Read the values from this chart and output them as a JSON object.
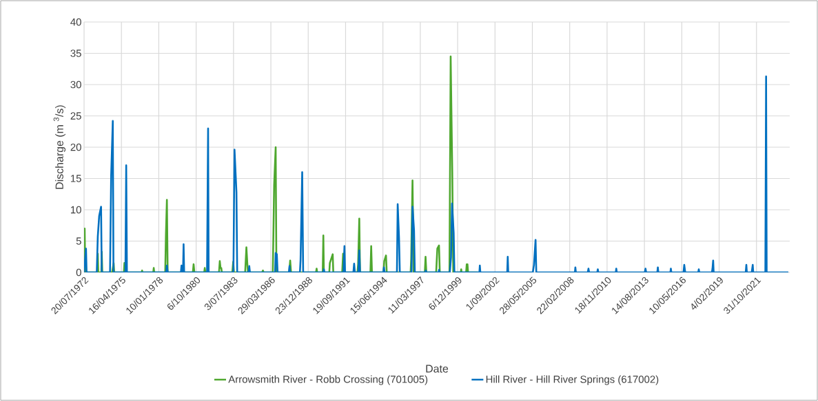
{
  "chart_data": {
    "type": "line",
    "xlabel": "Date",
    "ylabel": "Discharge (m $^{3}$/s)",
    "grid": true,
    "legend": "bottom",
    "line_style": "solid",
    "xlim": [
      "1972-07-20",
      "2024-04-08"
    ],
    "xticks": [
      {
        "value": "1972-07-20",
        "label": "20/07/1972"
      },
      {
        "value": "1975-04-16",
        "label": "16/04/1975"
      },
      {
        "value": "1978-01-10",
        "label": "10/01/1978"
      },
      {
        "value": "1980-10-06",
        "label": "6/10/1980"
      },
      {
        "value": "1983-07-03",
        "label": "3/07/1983"
      },
      {
        "value": "1986-03-29",
        "label": "29/03/1986"
      },
      {
        "value": "1988-12-23",
        "label": "23/12/1988"
      },
      {
        "value": "1991-09-19",
        "label": "19/09/1991"
      },
      {
        "value": "1994-06-15",
        "label": "15/06/1994"
      },
      {
        "value": "1997-03-11",
        "label": "11/03/1997"
      },
      {
        "value": "1999-12-06",
        "label": "6/12/1999"
      },
      {
        "value": "2002-09-01",
        "label": "1/09/2002"
      },
      {
        "value": "2005-05-28",
        "label": "28/05/2005"
      },
      {
        "value": "2008-02-22",
        "label": "22/02/2008"
      },
      {
        "value": "2010-11-18",
        "label": "18/11/2010"
      },
      {
        "value": "2013-08-14",
        "label": "14/08/2013"
      },
      {
        "value": "2016-05-10",
        "label": "10/05/2016"
      },
      {
        "value": "2019-02-04",
        "label": "4/02/2019"
      },
      {
        "value": "2021-10-31",
        "label": "31/10/2021"
      }
    ],
    "ylim": [
      0,
      40
    ],
    "yticks": [
      0,
      5,
      10,
      15,
      20,
      25,
      30,
      35,
      40
    ],
    "series": [
      {
        "name": "Arrowsmith River - Robb Crossing (701005)",
        "color": "#4ea72e",
        "x": [
          "1972-07-20",
          "1972-07-25",
          "1972-08-05",
          "1972-08-20",
          "1973-07-10",
          "1973-07-22",
          "1973-08-05",
          "1973-10-25",
          "1973-11-05",
          "1973-11-20",
          "1974-08-10",
          "1974-08-28",
          "1974-09-20",
          "1974-10-05",
          "1975-06-20",
          "1975-07-05",
          "1975-08-10",
          "1975-08-25",
          "1976-10-10",
          "1976-10-20",
          "1976-10-30",
          "1977-08-15",
          "1977-08-28",
          "1977-09-10",
          "1978-07-01",
          "1978-07-20",
          "1978-08-15",
          "1978-09-05",
          "1980-07-10",
          "1980-07-30",
          "1980-08-20",
          "1981-05-10",
          "1981-05-25",
          "1981-06-10",
          "1982-06-10",
          "1982-07-01",
          "1982-07-20",
          "1982-08-10",
          "1982-08-25",
          "1983-06-01",
          "1983-06-25",
          "1983-07-15",
          "1984-05-10",
          "1984-06-12",
          "1984-07-10",
          "1984-07-25",
          "1985-08-10",
          "1985-08-28",
          "1985-09-15",
          "1986-05-20",
          "1986-06-25",
          "1986-08-05",
          "1986-08-25",
          "1987-08-01",
          "1987-08-28",
          "1987-09-20",
          "1989-07-20",
          "1989-08-05",
          "1989-08-20",
          "1990-01-15",
          "1990-02-01",
          "1990-02-15",
          "1990-07-10",
          "1990-07-25",
          "1990-10-10",
          "1990-10-25",
          "1991-06-20",
          "1991-07-15",
          "1991-08-01",
          "1992-08-01",
          "1992-08-20",
          "1992-09-20",
          "1992-10-10",
          "1993-07-15",
          "1993-08-05",
          "1993-08-25",
          "1994-07-01",
          "1994-07-20",
          "1994-09-05",
          "1994-09-25",
          "1995-06-10",
          "1995-06-25",
          "1995-07-10",
          "1996-06-25",
          "1996-07-10",
          "1996-08-15",
          "1996-09-15",
          "1997-07-10",
          "1997-07-30",
          "1997-08-20",
          "1998-05-10",
          "1998-06-10",
          "1998-07-25",
          "1998-08-15",
          "1999-05-01",
          "1999-06-02",
          "1999-07-15",
          "1999-08-10",
          "2000-03-01",
          "2000-03-10",
          "2000-03-20",
          "2000-07-20",
          "2000-08-05",
          "2000-08-25",
          "2000-09-10",
          "2001-06-01"
        ],
        "values": [
          0,
          4.4,
          7.0,
          0,
          0,
          3.0,
          0,
          0,
          3.3,
          0,
          0,
          null,
          1.5,
          0,
          0,
          1.5,
          null,
          0,
          0,
          0.3,
          0,
          0,
          0.7,
          0,
          0,
          6.0,
          11.6,
          0,
          0,
          1.3,
          0,
          0,
          0.7,
          0,
          0,
          1.8,
          0.7,
          0.7,
          0,
          0,
          1.7,
          0,
          0,
          4.0,
          1.1,
          0,
          0,
          0.3,
          0,
          0,
          14.0,
          20.0,
          0,
          0,
          1.9,
          0,
          0,
          0.6,
          0,
          0,
          5.9,
          0,
          0,
          1.5,
          2.9,
          0,
          0,
          3.0,
          0,
          0,
          1.3,
          8.6,
          0,
          0,
          4.2,
          0,
          0,
          1.8,
          2.7,
          0,
          0,
          null,
          0,
          0,
          2.1,
          14.7,
          0,
          0,
          2.5,
          0,
          0,
          3.8,
          4.3,
          0,
          0,
          34.5,
          16.0,
          0,
          0,
          0.5,
          0,
          0,
          1.3,
          1.3,
          0,
          0
        ]
      },
      {
        "name": "Hill River - Hill River Springs (617002)",
        "color": "#0070c0",
        "x": [
          "1972-07-20",
          "1972-09-10",
          "1972-09-25",
          "1973-06-25",
          "1973-07-22",
          "1973-08-28",
          "1973-10-18",
          "1973-11-05",
          "1974-06-15",
          "1974-07-15",
          "1974-08-28",
          "1974-09-15",
          "1975-08-01",
          "1975-08-22",
          "1975-09-10",
          "1978-07-25",
          "1978-08-15",
          "1978-09-05",
          "1979-08-25",
          "1979-09-10",
          "1979-10-20",
          "1979-11-05",
          "1979-11-20",
          "1981-07-25",
          "1981-08-22",
          "1981-09-05",
          "1983-07-01",
          "1983-07-30",
          "1983-09-20",
          "1983-10-10",
          "1984-08-10",
          "1984-08-28",
          "1984-09-15",
          "1986-07-20",
          "1986-08-05",
          "1986-09-05",
          "1986-09-25",
          "1987-07-25",
          "1987-08-10",
          "1987-08-25",
          "1988-05-15",
          "1988-06-01",
          "1988-07-15",
          "1988-08-10",
          "1990-02-01",
          "1990-02-15",
          "1990-03-01",
          "1991-07-25",
          "1991-08-20",
          "1991-09-05",
          "1992-04-15",
          "1992-05-05",
          "1992-05-25",
          "1992-08-25",
          "1992-09-20",
          "1992-10-10",
          "1994-06-25",
          "1994-07-12",
          "1994-07-30",
          "1995-06-25",
          "1995-07-15",
          "1995-08-20",
          "1995-09-10",
          "1996-07-20",
          "1996-08-15",
          "1996-09-25",
          "1996-10-15",
          "1997-07-25",
          "1997-08-05",
          "1997-08-15",
          "1998-07-15",
          "1998-07-25",
          "1998-08-05",
          "1999-05-10",
          "1999-06-12",
          "1999-07-08",
          "1999-08-22",
          "1999-09-10",
          "2001-07-10",
          "2001-07-22",
          "2001-08-05",
          "2003-07-25",
          "2003-08-08",
          "2003-08-22",
          "2005-06-10",
          "2005-07-10",
          "2005-08-22",
          "2005-09-10",
          "2008-07-10",
          "2008-07-22",
          "2008-08-05",
          "2009-06-20",
          "2009-07-08",
          "2009-07-25",
          "2010-03-01",
          "2010-03-15",
          "2010-03-30",
          "2011-07-10",
          "2011-07-22",
          "2011-08-05",
          "2013-08-25",
          "2013-09-12",
          "2013-09-30",
          "2014-07-25",
          "2014-08-08",
          "2014-08-22",
          "2015-07-10",
          "2015-07-22",
          "2015-08-05",
          "2016-06-25",
          "2016-07-15",
          "2016-08-10",
          "2017-07-25",
          "2017-08-08",
          "2017-08-22",
          "2018-07-25",
          "2018-08-10",
          "2018-08-28",
          "2018-09-10",
          "2021-01-15",
          "2021-02-01",
          "2021-02-15",
          "2021-06-25",
          "2021-07-22",
          "2021-08-05",
          "2022-06-25",
          "2022-07-15",
          "2022-07-30",
          "2024-03-01"
        ],
        "values": [
          0,
          3.8,
          0,
          0,
          5.7,
          9.0,
          10.5,
          0,
          0,
          15.5,
          24.2,
          0,
          0,
          17.1,
          0,
          0,
          1.1,
          0,
          0,
          1.1,
          0,
          4.5,
          0,
          0,
          23.0,
          0,
          0,
          19.6,
          12.8,
          0,
          0,
          1.0,
          0,
          0,
          3.1,
          2.9,
          0,
          0,
          1.0,
          0,
          0,
          2.0,
          16.0,
          0,
          0,
          0.5,
          0,
          0,
          4.2,
          0,
          0,
          1.4,
          0,
          0,
          3.5,
          0,
          0,
          0.8,
          0,
          0,
          10.9,
          5.5,
          0,
          0,
          10.5,
          6.7,
          0,
          0,
          0.3,
          0,
          0,
          0.4,
          0,
          0,
          2.4,
          11.0,
          6.3,
          0,
          0,
          1.1,
          0,
          0,
          2.5,
          0,
          0,
          1.2,
          5.2,
          0,
          0,
          0.8,
          0,
          0,
          0.6,
          0,
          0,
          0.5,
          0,
          0,
          0.6,
          0,
          0,
          0.6,
          0,
          0,
          0.8,
          0,
          0,
          0.6,
          0,
          0,
          1.2,
          0,
          0,
          0.5,
          0,
          0,
          0.6,
          1.9,
          0,
          0,
          1.2,
          0,
          0,
          1.2,
          0,
          0,
          31.3,
          0,
          0
        ]
      }
    ]
  }
}
